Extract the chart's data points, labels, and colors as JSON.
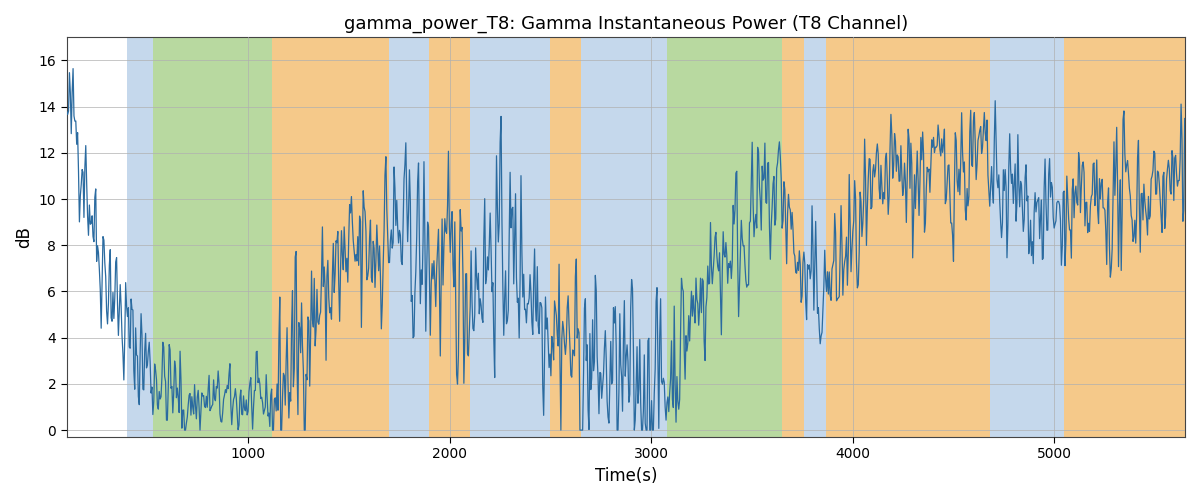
{
  "title": "gamma_power_T8: Gamma Instantaneous Power (T8 Channel)",
  "xlabel": "Time(s)",
  "ylabel": "dB",
  "ylim": [
    -0.3,
    17
  ],
  "yticks": [
    0,
    2,
    4,
    6,
    8,
    10,
    12,
    14,
    16
  ],
  "xlim": [
    100,
    5650
  ],
  "xticks": [
    1000,
    2000,
    3000,
    4000,
    5000
  ],
  "line_color": "#2b6ba0",
  "color_blue": "#c5d8ec",
  "color_green": "#b8d9a0",
  "color_orange": "#f5c98a",
  "bands": [
    {
      "start": 400,
      "end": 530,
      "color": "blue"
    },
    {
      "start": 530,
      "end": 1120,
      "color": "green"
    },
    {
      "start": 1120,
      "end": 1700,
      "color": "orange"
    },
    {
      "start": 1700,
      "end": 1900,
      "color": "blue"
    },
    {
      "start": 1900,
      "end": 2100,
      "color": "orange"
    },
    {
      "start": 2100,
      "end": 2500,
      "color": "blue"
    },
    {
      "start": 2500,
      "end": 2650,
      "color": "orange"
    },
    {
      "start": 2650,
      "end": 2950,
      "color": "blue"
    },
    {
      "start": 2950,
      "end": 3080,
      "color": "blue"
    },
    {
      "start": 3080,
      "end": 3650,
      "color": "green"
    },
    {
      "start": 3650,
      "end": 3760,
      "color": "orange"
    },
    {
      "start": 3760,
      "end": 3870,
      "color": "blue"
    },
    {
      "start": 3870,
      "end": 4680,
      "color": "orange"
    },
    {
      "start": 4680,
      "end": 5050,
      "color": "blue"
    },
    {
      "start": 5050,
      "end": 5650,
      "color": "orange"
    }
  ],
  "seed": 42,
  "figsize": [
    12,
    5
  ],
  "dpi": 100
}
